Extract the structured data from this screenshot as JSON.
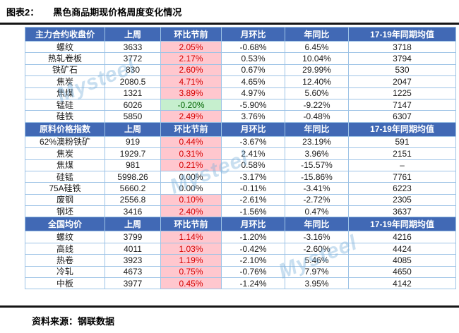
{
  "header": {
    "tag": "图表2：",
    "title": "黑色商品期现价格周度变化情况"
  },
  "footer": {
    "source": "资料来源：钢联数据"
  },
  "watermark": {
    "text": "Mysteel"
  },
  "colors": {
    "header_bg": "#4169b5",
    "header_text": "#ffffff",
    "positive_bg": "#ffc7ce",
    "positive_text": "#d50000",
    "negative_bg": "#c6efce",
    "negative_text": "#006400",
    "grid_border": "#9dc3e6",
    "rule": "#151515",
    "watermark": "rgba(126,179,220,0.42)"
  },
  "chart_data": {
    "type": "table",
    "title": "黑色商品期现价格周度变化情况",
    "columns": [
      "上周",
      "环比节前",
      "月环比",
      "年同比",
      "17-19年同期均值"
    ],
    "conditional_format_column": "环比节前",
    "sections": [
      {
        "name": "主力合约收盘价",
        "rows": [
          {
            "label": "螺纹",
            "values": [
              "3633",
              "2.05%",
              "-0.68%",
              "6.45%",
              "3718"
            ]
          },
          {
            "label": "热轧卷板",
            "values": [
              "3772",
              "2.17%",
              "0.53%",
              "10.04%",
              "3794"
            ]
          },
          {
            "label": "铁矿石",
            "values": [
              "830",
              "2.60%",
              "0.67%",
              "29.99%",
              "530"
            ]
          },
          {
            "label": "焦炭",
            "values": [
              "2080.5",
              "4.71%",
              "4.65%",
              "12.40%",
              "2047"
            ]
          },
          {
            "label": "焦煤",
            "values": [
              "1321",
              "3.89%",
              "4.97%",
              "5.60%",
              "1225"
            ]
          },
          {
            "label": "锰硅",
            "values": [
              "6026",
              "-0.20%",
              "-5.90%",
              "-9.22%",
              "7147"
            ]
          },
          {
            "label": "硅铁",
            "values": [
              "5850",
              "2.49%",
              "3.76%",
              "-0.48%",
              "6307"
            ]
          }
        ]
      },
      {
        "name": "原料价格指数",
        "rows": [
          {
            "label": "62%澳粉铁矿",
            "values": [
              "919",
              "0.44%",
              "-3.67%",
              "23.19%",
              "591"
            ]
          },
          {
            "label": "焦炭",
            "values": [
              "1929.7",
              "0.31%",
              "2.41%",
              "3.96%",
              "2151"
            ]
          },
          {
            "label": "焦煤",
            "values": [
              "981",
              "0.21%",
              "0.58%",
              "-15.57%",
              "–"
            ]
          },
          {
            "label": "硅锰",
            "values": [
              "5998.26",
              "0.00%",
              "-3.17%",
              "-15.86%",
              "7761"
            ]
          },
          {
            "label": "75A硅铁",
            "values": [
              "5660.2",
              "0.00%",
              "-0.11%",
              "-3.41%",
              "6223"
            ]
          },
          {
            "label": "废钢",
            "values": [
              "2556.8",
              "0.10%",
              "-2.61%",
              "-2.72%",
              "2305"
            ]
          },
          {
            "label": "钢坯",
            "values": [
              "3416",
              "2.40%",
              "-1.56%",
              "0.47%",
              "3637"
            ]
          }
        ]
      },
      {
        "name": "全国均价",
        "rows": [
          {
            "label": "螺纹",
            "values": [
              "3799",
              "1.14%",
              "-1.20%",
              "-3.16%",
              "4216"
            ]
          },
          {
            "label": "高线",
            "values": [
              "4011",
              "1.03%",
              "-0.42%",
              "-2.60%",
              "4424"
            ]
          },
          {
            "label": "热卷",
            "values": [
              "3923",
              "1.19%",
              "-2.10%",
              "5.46%",
              "4085"
            ]
          },
          {
            "label": "冷轧",
            "values": [
              "4673",
              "0.75%",
              "-0.76%",
              "7.97%",
              "4650"
            ]
          },
          {
            "label": "中板",
            "values": [
              "3977",
              "0.45%",
              "-1.24%",
              "3.95%",
              "4142"
            ]
          }
        ]
      }
    ]
  }
}
